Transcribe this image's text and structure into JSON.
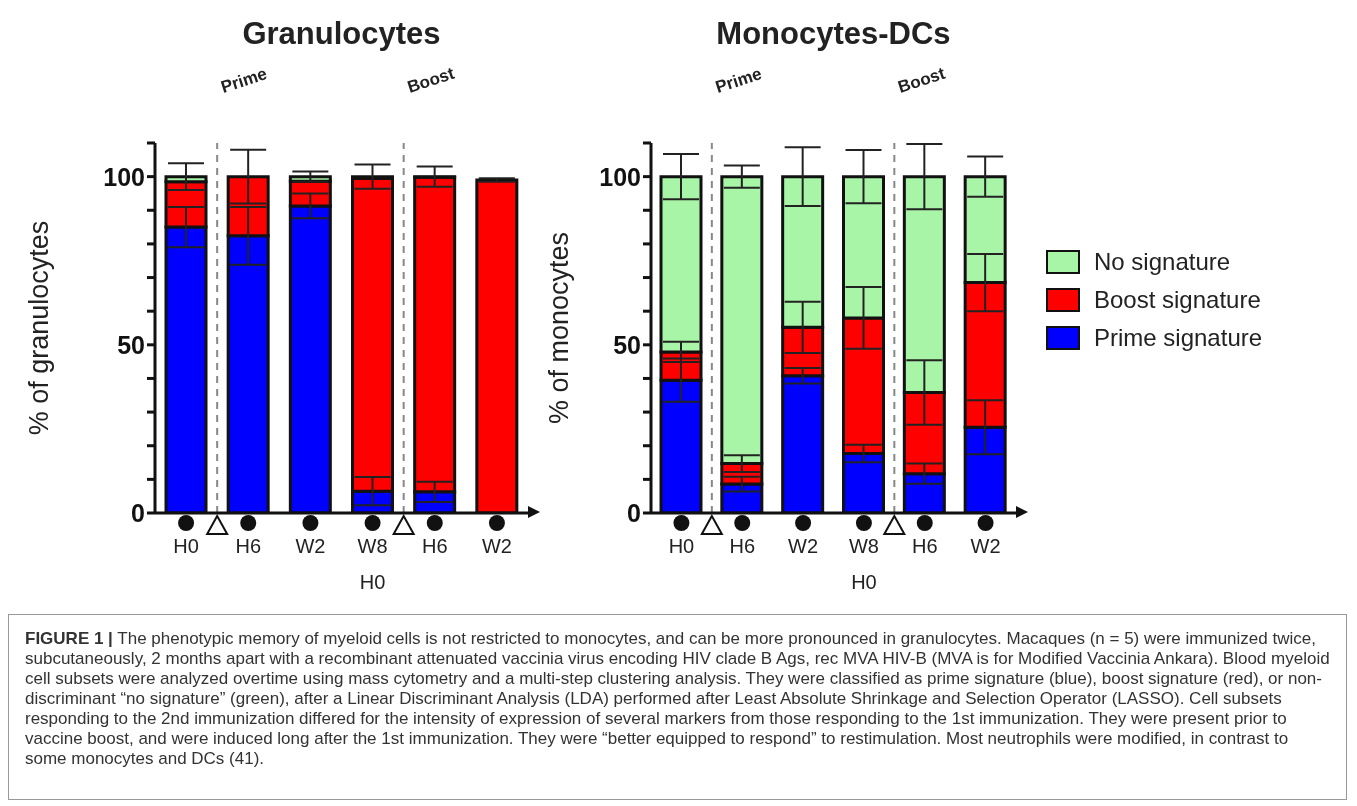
{
  "chart_data": [
    {
      "type": "bar",
      "title": "Granulocytes",
      "ylabel": "% of granulocytes",
      "categories": [
        "H0",
        "H6",
        "W2",
        "W8\nH0",
        "H6",
        "W2"
      ],
      "stacked": true,
      "legend": false,
      "series": [
        {
          "color": "#0000ff",
          "values": [
            85,
            82.4,
            91.3,
            6.5,
            6.3,
            null
          ],
          "errors": [
            6,
            8.6,
            3.7,
            4.2,
            3,
            null
          ]
        },
        {
          "color": "#ff0000",
          "values": [
            13.5,
            17.6,
            7.3,
            93,
            93.5,
            99
          ],
          "errors": [
            null,
            8,
            null,
            null,
            null,
            0.5
          ]
        },
        {
          "color": "#a8f5a8",
          "values": [
            1.5,
            0,
            1.4,
            0.5,
            0.2,
            0
          ],
          "errors": [
            4,
            null,
            1.5,
            3.6,
            3,
            null
          ]
        }
      ],
      "ylim": [
        0,
        110
      ],
      "yticks": [
        0,
        {
          "value": 10,
          "label": null
        },
        {
          "value": 20,
          "label": null
        },
        {
          "value": 30,
          "label": null
        },
        {
          "value": 40,
          "label": null
        },
        50,
        {
          "value": 60,
          "label": null
        },
        {
          "value": 70,
          "label": null
        },
        {
          "value": 80,
          "label": null
        },
        {
          "value": 90,
          "label": null
        },
        100,
        {
          "value": 110,
          "label": null
        }
      ],
      "annotations": [
        "Prime",
        "Boost",
        "FIGURE 1 |",
        "The phenotypic memory of myeloid cells is not restricted to monocytes, and can be more pronounced in granulocytes. Macaques (n = 5) were immunized twice, subcutaneously, 2 months apart with a recombinant attenuated vaccinia virus encoding HIV clade B Ags, rec MVA HIV-B (MVA is for Modified Vaccinia Ankara). Blood myeloid cell subsets were analyzed overtime using mass cytometry and a multi-step clustering analysis. They were classified as prime signature (blue), boost signature (red), or non-discriminant “no signature” (green), after a Linear Discriminant Analysis (LDA) performed after Least Absolute Shrinkage and Selection Operator (LASSO). Cell subsets responding to the 2nd immunization differed for the intensity of expression of several markers from those responding to the 1st immunization. They were present prior to vaccine boost, and were induced long after the 1st immunization. They were “better equipped to respond” to restimulation. Most neutrophils were modified, in contrast to some monocytes and DCs (41)."
      ]
    },
    {
      "type": "bar",
      "title": "Monocytes-DCs",
      "ylabel": "% of monocytes",
      "categories": [
        "H0",
        "H6",
        "W2",
        "W8\nH0",
        "H6",
        "W2"
      ],
      "stacked": true,
      "legend": "right",
      "series": [
        {
          "name": "Prime signature",
          "color": "#0000ff",
          "values": [
            39.5,
            8.6,
            40.8,
            17.7,
            11.7,
            25.5
          ],
          "errors": [
            6.4,
            2.2,
            2.3,
            2.6,
            3,
            8
          ]
        },
        {
          "name": "Boost signature",
          "color": "#ff0000",
          "values": [
            8.4,
            6.1,
            14.4,
            40.3,
            24.1,
            43
          ],
          "errors": [
            3,
            2.5,
            7.6,
            9.2,
            9.6,
            8.5
          ]
        },
        {
          "name": "No signature",
          "color": "#a8f5a8",
          "values": [
            52.1,
            85.3,
            44.8,
            42,
            64.2,
            31.5
          ],
          "errors": [
            6.7,
            3.3,
            8.7,
            7.9,
            9.7,
            6
          ]
        }
      ],
      "ylim": [
        0,
        110
      ],
      "yticks": [
        0,
        {
          "value": 10,
          "label": null
        },
        {
          "value": 20,
          "label": null
        },
        {
          "value": 30,
          "label": null
        },
        {
          "value": 40,
          "label": null
        },
        50,
        {
          "value": 60,
          "label": null
        },
        {
          "value": 70,
          "label": null
        },
        {
          "value": 80,
          "label": null
        },
        {
          "value": 90,
          "label": null
        },
        100,
        {
          "value": 110,
          "label": null
        }
      ],
      "annotations": [
        "Prime",
        "Boost"
      ]
    }
  ]
}
